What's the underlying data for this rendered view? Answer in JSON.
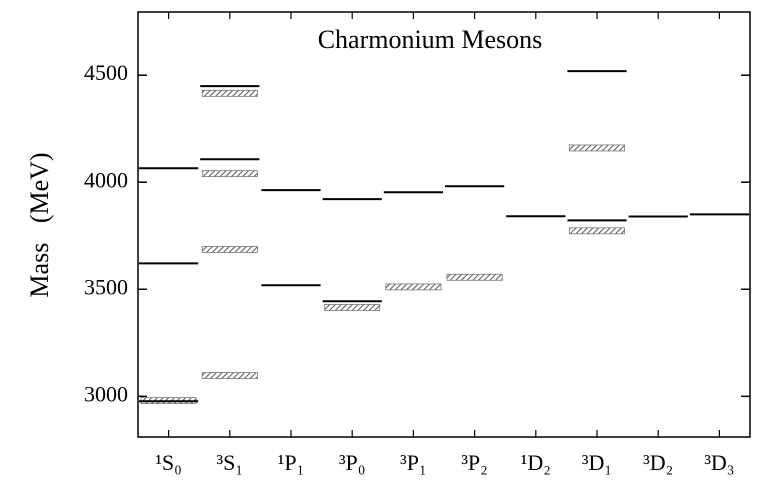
{
  "chart_data": {
    "type": "level",
    "title": "Charmonium Mesons",
    "y_label": "Mass   (MeV)",
    "categories": [
      "¹S₀",
      "³S₁",
      "¹P₁",
      "³P₀",
      "³P₁",
      "³P₂",
      "¹D₂",
      "³D₁",
      "³D₂",
      "³D₃"
    ],
    "ylim": [
      2810,
      4795
    ],
    "yticks": [
      3000,
      3500,
      4000,
      4500
    ],
    "series": [
      {
        "style": "hatched",
        "color": "#777777",
        "values": [
          2980,
          3097,
          null,
          3415,
          3511,
          3556,
          null,
          3773,
          null,
          null
        ]
      },
      {
        "style": "hatched",
        "color": "#777777",
        "values": [
          null,
          3686,
          null,
          null,
          null,
          null,
          null,
          4160,
          null,
          null
        ]
      },
      {
        "style": "hatched",
        "color": "#777777",
        "values": [
          null,
          4040,
          null,
          null,
          null,
          null,
          null,
          null,
          null,
          null
        ]
      },
      {
        "style": "hatched",
        "color": "#777777",
        "values": [
          null,
          4415,
          null,
          null,
          null,
          null,
          null,
          null,
          null,
          null
        ]
      },
      {
        "style": "solid",
        "color": "#000000",
        "values": [
          2977,
          null,
          3519,
          3444,
          null,
          null,
          3841,
          3822,
          3840,
          3850
        ]
      },
      {
        "style": "solid",
        "color": "#000000",
        "values": [
          3621,
          null,
          3963,
          3921,
          3953,
          3981,
          null,
          4519,
          null,
          null
        ]
      },
      {
        "style": "solid",
        "color": "#000000",
        "values": [
          4065,
          4107,
          null,
          null,
          null,
          null,
          null,
          null,
          null,
          null
        ]
      },
      {
        "style": "solid",
        "color": "#000000",
        "values": [
          null,
          4449,
          null,
          null,
          null,
          null,
          null,
          null,
          null,
          null
        ]
      }
    ]
  }
}
